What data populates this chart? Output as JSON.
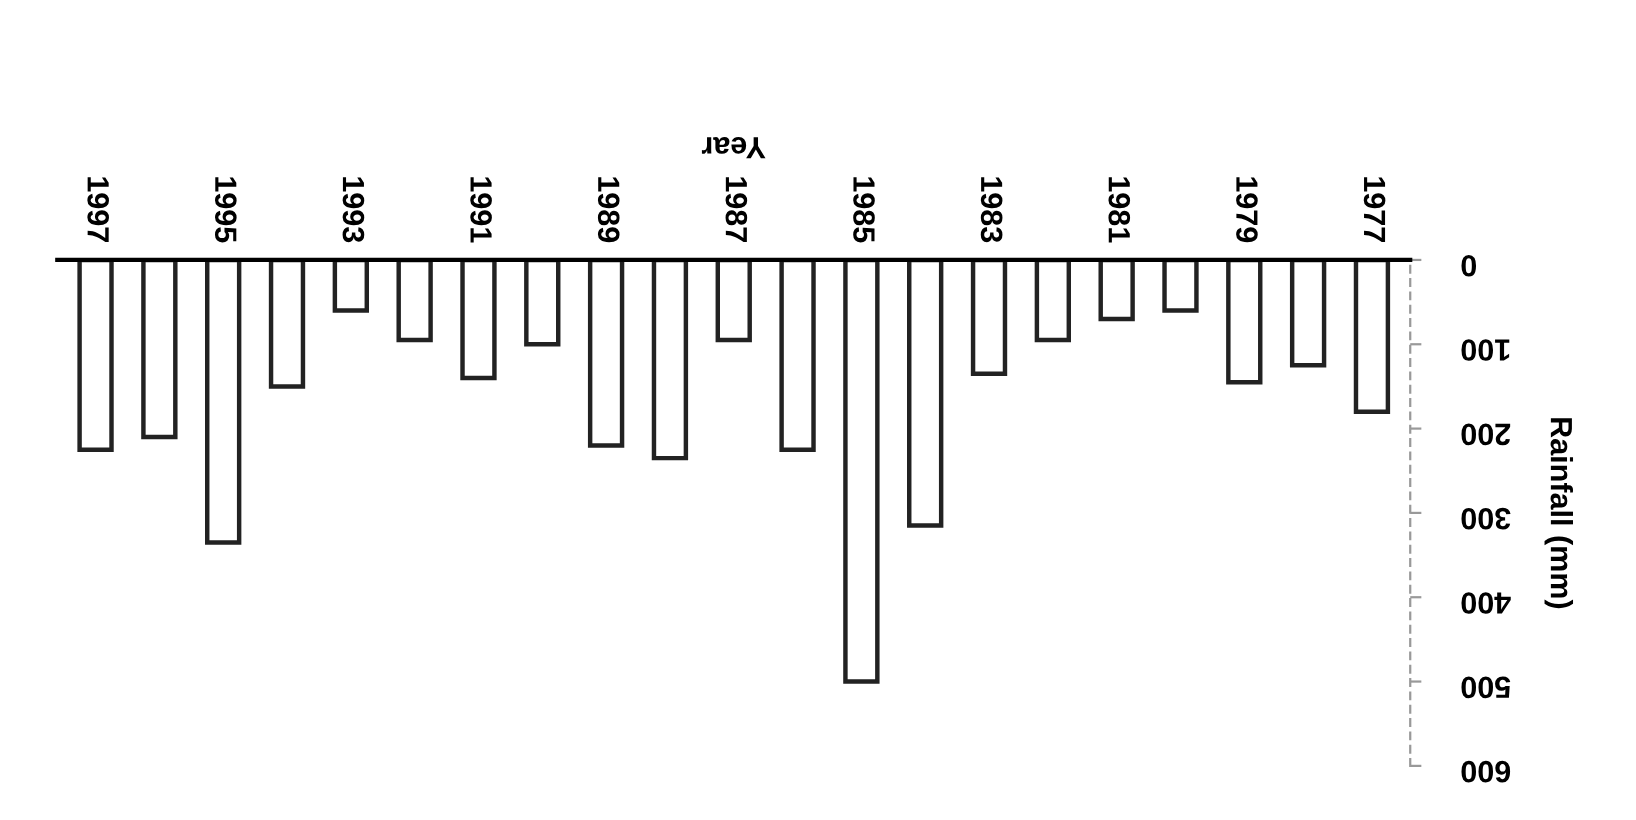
{
  "chart_data": {
    "type": "bar",
    "xlabel": "Year",
    "ylabel": "Rainfall (mm)",
    "categories": [
      "1997",
      null,
      "1995",
      null,
      "1993",
      null,
      "1991",
      null,
      "1989",
      null,
      "1987",
      null,
      "1985",
      null,
      "1983",
      null,
      "1981",
      null,
      "1979",
      null,
      "1977"
    ],
    "series": [
      {
        "color": "#ffffff",
        "values": [
          225,
          210,
          335,
          150,
          60,
          95,
          140,
          100,
          220,
          235,
          95,
          225,
          500,
          315,
          135,
          95,
          70,
          60,
          145,
          125,
          180
        ]
      }
    ],
    "ylim": [
      600,
      0
    ],
    "yticks": [
      0,
      100,
      200,
      300,
      400,
      500,
      600
    ],
    "grid": false,
    "legend": false
  }
}
